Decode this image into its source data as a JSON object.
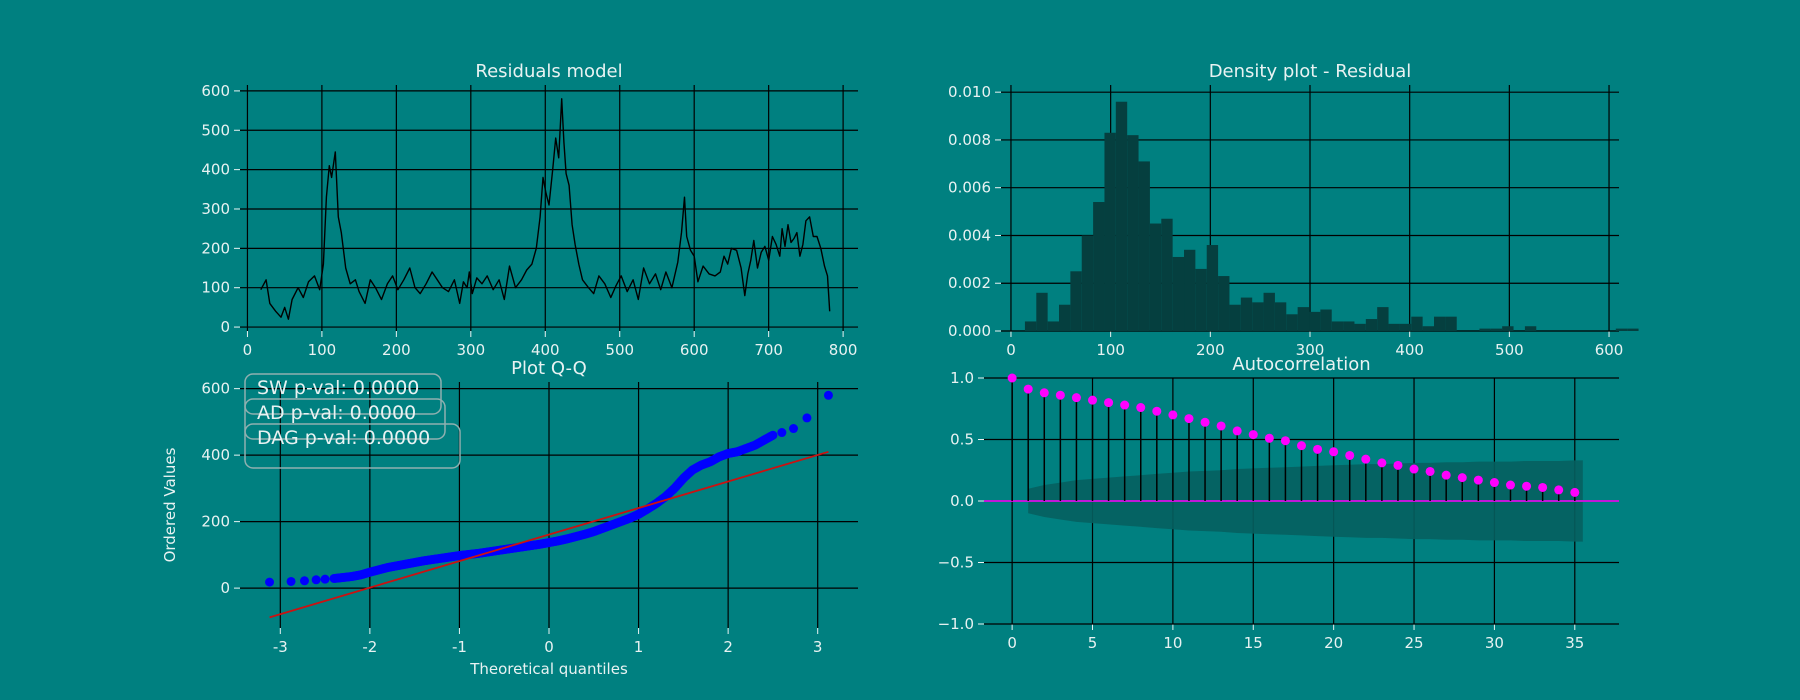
{
  "colors": {
    "background": "#008080",
    "text": "#e8f2f2",
    "grid": "#000000",
    "residual_line": "#000000",
    "histogram": "#053f3f",
    "qq_points": "#0000ff",
    "qq_line": "#cc1111",
    "acf_points": "#ff00ff",
    "acf_band": "#055f5f",
    "stat_box_border": "#8fb0b0"
  },
  "chart_data": [
    {
      "type": "line",
      "title": "Residuals model",
      "xlabel": "",
      "ylabel": "",
      "xlim": [
        -10,
        820
      ],
      "ylim": [
        -10,
        615
      ],
      "xticks": [
        0,
        100,
        200,
        300,
        400,
        500,
        600,
        700,
        800
      ],
      "yticks": [
        0,
        100,
        200,
        300,
        400,
        500,
        600
      ],
      "grid": true,
      "series": [
        {
          "x": [
            18,
            25,
            30,
            38,
            45,
            50,
            55,
            60,
            68,
            75,
            82,
            90,
            97,
            102,
            106,
            110,
            113,
            118,
            122,
            126,
            132,
            138,
            145,
            150,
            158,
            165,
            172,
            180,
            188,
            195,
            202,
            210,
            218,
            225,
            232,
            240,
            248,
            255,
            262,
            270,
            278,
            285,
            290,
            295,
            298,
            302,
            308,
            315,
            322,
            330,
            338,
            345,
            352,
            360,
            368,
            375,
            382,
            388,
            393,
            397,
            401,
            405,
            410,
            414,
            418,
            422,
            425,
            428,
            432,
            436,
            440,
            445,
            450,
            458,
            465,
            472,
            480,
            488,
            495,
            502,
            510,
            518,
            525,
            532,
            540,
            548,
            555,
            562,
            570,
            578,
            583,
            587,
            590,
            595,
            600,
            605,
            612,
            620,
            628,
            635,
            640,
            645,
            650,
            657,
            663,
            668,
            672,
            676,
            680,
            685,
            690,
            695,
            700,
            705,
            710,
            715,
            718,
            722,
            726,
            730,
            734,
            738,
            742,
            746,
            750,
            755,
            760,
            765,
            770,
            775,
            779,
            782
          ],
          "values": [
            95,
            120,
            60,
            40,
            25,
            50,
            20,
            70,
            100,
            75,
            115,
            130,
            95,
            160,
            330,
            410,
            380,
            445,
            280,
            240,
            150,
            110,
            120,
            90,
            60,
            120,
            100,
            70,
            110,
            130,
            95,
            120,
            150,
            100,
            85,
            110,
            140,
            120,
            100,
            90,
            120,
            60,
            115,
            100,
            140,
            85,
            125,
            110,
            130,
            95,
            120,
            70,
            155,
            100,
            120,
            145,
            160,
            200,
            280,
            380,
            340,
            310,
            400,
            480,
            430,
            580,
            470,
            390,
            360,
            260,
            210,
            160,
            120,
            100,
            85,
            130,
            110,
            75,
            105,
            130,
            90,
            120,
            70,
            150,
            110,
            135,
            95,
            140,
            100,
            165,
            240,
            330,
            230,
            195,
            180,
            115,
            155,
            135,
            130,
            140,
            180,
            160,
            200,
            195,
            150,
            80,
            135,
            170,
            220,
            150,
            190,
            205,
            170,
            230,
            210,
            180,
            250,
            205,
            260,
            215,
            225,
            240,
            180,
            210,
            270,
            280,
            230,
            230,
            200,
            155,
            130,
            40
          ]
        }
      ]
    },
    {
      "type": "bar",
      "title": "Density plot - Residual",
      "xlabel": "",
      "ylabel": "",
      "xlim": [
        -10,
        610
      ],
      "ylim": [
        0,
        0.0103
      ],
      "xticks": [
        0,
        100,
        200,
        300,
        400,
        500,
        600
      ],
      "yticks": [
        "0.000",
        "0.002",
        "0.004",
        "0.006",
        "0.008",
        "0.010"
      ],
      "grid": true,
      "bin_width": 11.4,
      "bin_start": 14,
      "values": [
        0.0004,
        0.0016,
        0.0004,
        0.0011,
        0.0025,
        0.004,
        0.0054,
        0.0083,
        0.0096,
        0.0082,
        0.0071,
        0.0045,
        0.0047,
        0.0031,
        0.0034,
        0.0026,
        0.0036,
        0.0023,
        0.0011,
        0.0014,
        0.0012,
        0.0016,
        0.0012,
        0.0007,
        0.001,
        0.0008,
        0.0009,
        0.0004,
        0.0004,
        0.0003,
        0.0005,
        0.001,
        0.0003,
        0.0003,
        0.0006,
        0.0002,
        0.0006,
        0.0006,
        0.0,
        0.0,
        0.0001,
        0.0001,
        0.0002,
        0.0,
        0.0002,
        0.0,
        0.0,
        0.0,
        0.0,
        0.0,
        0.0,
        0.0,
        0.0001,
        0.0001
      ]
    },
    {
      "type": "scatter",
      "title": "Plot Q-Q",
      "xlabel": "Theoretical quantiles",
      "ylabel": "Ordered Values",
      "xlim": [
        -3.45,
        3.45
      ],
      "ylim": [
        -120,
        620
      ],
      "xticks": [
        -3,
        -2,
        -1,
        0,
        1,
        2,
        3
      ],
      "yticks": [
        0,
        200,
        400,
        600
      ],
      "grid": true,
      "points": {
        "x": [
          -3.12,
          -2.88,
          -2.73,
          -2.6,
          -2.5,
          -2.4,
          -2.3,
          -2.2,
          -2.1,
          -2.0,
          -1.9,
          -1.8,
          -1.7,
          -1.6,
          -1.5,
          -1.4,
          -1.3,
          -1.2,
          -1.1,
          -1.0,
          -0.9,
          -0.8,
          -0.7,
          -0.6,
          -0.5,
          -0.4,
          -0.3,
          -0.2,
          -0.1,
          0.0,
          0.1,
          0.2,
          0.3,
          0.4,
          0.5,
          0.6,
          0.7,
          0.8,
          0.9,
          1.0,
          1.1,
          1.2,
          1.3,
          1.4,
          1.5,
          1.6,
          1.7,
          1.8,
          1.9,
          2.0,
          2.1,
          2.2,
          2.3,
          2.4,
          2.5,
          2.6,
          2.73,
          2.88,
          3.12
        ],
        "y": [
          18,
          20,
          22,
          25,
          27,
          29,
          32,
          35,
          40,
          48,
          55,
          62,
          67,
          72,
          77,
          82,
          86,
          90,
          94,
          98,
          101,
          104,
          108,
          112,
          116,
          120,
          124,
          128,
          132,
          137,
          142,
          148,
          155,
          162,
          170,
          180,
          190,
          200,
          210,
          222,
          238,
          255,
          275,
          300,
          330,
          355,
          370,
          380,
          395,
          405,
          410,
          420,
          430,
          445,
          460,
          468,
          480,
          512,
          580
        ]
      },
      "fit_line": {
        "x": [
          -3.12,
          3.12
        ],
        "y": [
          -88,
          410
        ]
      },
      "annotations": [
        "SW p-val: 0.0000",
        "AD p-val: 0.0000",
        "DAG p-val: 0.0000"
      ]
    },
    {
      "type": "scatter",
      "title": "Autocorrelation",
      "xlabel": "",
      "ylabel": "",
      "xlim": [
        -1.75,
        37.75
      ],
      "ylim": [
        -1.0,
        1.0
      ],
      "xticks": [
        0,
        5,
        10,
        15,
        20,
        25,
        30,
        35
      ],
      "yticks": [
        "−1.0",
        "−0.5",
        "0.0",
        "0.5",
        "1.0"
      ],
      "grid": true,
      "lags": [
        0,
        1,
        2,
        3,
        4,
        5,
        6,
        7,
        8,
        9,
        10,
        11,
        12,
        13,
        14,
        15,
        16,
        17,
        18,
        19,
        20,
        21,
        22,
        23,
        24,
        25,
        26,
        27,
        28,
        29,
        30,
        31,
        32,
        33,
        34,
        35
      ],
      "values": [
        1.0,
        0.91,
        0.88,
        0.86,
        0.84,
        0.82,
        0.8,
        0.78,
        0.76,
        0.73,
        0.7,
        0.67,
        0.64,
        0.61,
        0.57,
        0.54,
        0.51,
        0.49,
        0.45,
        0.42,
        0.4,
        0.37,
        0.34,
        0.31,
        0.29,
        0.26,
        0.24,
        0.21,
        0.19,
        0.17,
        0.15,
        0.13,
        0.12,
        0.11,
        0.09,
        0.07
      ],
      "confidence_band": [
        0.07,
        0.1,
        0.13,
        0.15,
        0.17,
        0.18,
        0.19,
        0.2,
        0.21,
        0.22,
        0.23,
        0.24,
        0.245,
        0.25,
        0.26,
        0.265,
        0.27,
        0.275,
        0.28,
        0.285,
        0.29,
        0.295,
        0.3,
        0.3,
        0.305,
        0.31,
        0.31,
        0.315,
        0.315,
        0.32,
        0.32,
        0.32,
        0.325,
        0.325,
        0.325,
        0.33
      ]
    }
  ]
}
